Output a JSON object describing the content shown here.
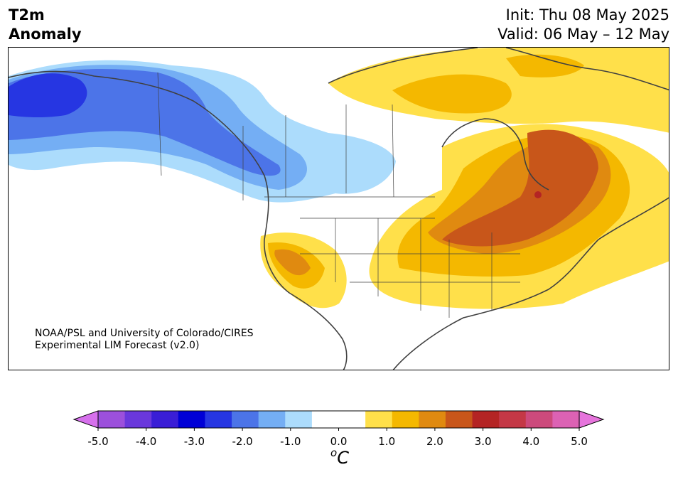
{
  "header": {
    "left_line1": "T2m",
    "left_line2": "Anomaly",
    "init": "Init: Thu 08 May 2025",
    "valid": "Valid: 06 May – 12 May"
  },
  "credit": {
    "line1": "NOAA/PSL and University of Colorado/CIRES",
    "line2": "Experimental LIM Forecast (v2.0)"
  },
  "colorbar": {
    "unit_base": "C",
    "unit_sup": "o",
    "ticks": [
      "-5.0",
      "-4.0",
      "-3.0",
      "-2.0",
      "-1.0",
      "0.0",
      "1.0",
      "2.0",
      "3.0",
      "4.0",
      "5.0"
    ],
    "colors": [
      "#d670ec",
      "#9c50dc",
      "#6a38dc",
      "#3a1ed6",
      "#0000d6",
      "#2636e2",
      "#4c74e8",
      "#74aef4",
      "#acdcfc",
      "#ffffff",
      "#ffffff",
      "#ffe04a",
      "#f4b800",
      "#e08a10",
      "#c8561a",
      "#b42424",
      "#c43846",
      "#cc4a7c",
      "#dc62b4",
      "#e674dc"
    ]
  },
  "map": {
    "ocean_color": "#ffffff",
    "land_outline_color": "#404040"
  }
}
